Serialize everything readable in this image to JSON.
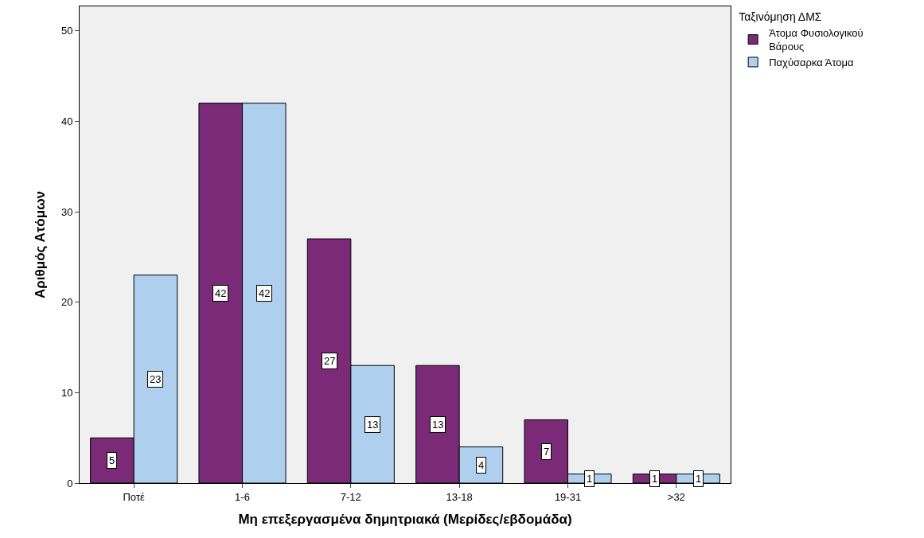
{
  "chart_data": {
    "type": "bar",
    "xlabel": "Μη επεξεργασμένα δημητριακά (Μερίδες/εβδομάδα)",
    "ylabel": "Αριθμός Ατόμων",
    "legend_title": "Ταξινόμηση ΔΜΣ",
    "categories": [
      "Ποτέ",
      "1-6",
      "7-12",
      "13-18",
      "19-31",
      ">32"
    ],
    "series": [
      {
        "name": "Άτομα Φυσιολογικού Βάρους",
        "color": "#7b2a78",
        "values": [
          5,
          42,
          27,
          13,
          7,
          1
        ]
      },
      {
        "name": "Παχύσαρκα Άτομα",
        "color": "#aed0ee",
        "values": [
          23,
          42,
          13,
          4,
          1,
          1
        ]
      }
    ],
    "ylim": [
      0,
      52.7
    ],
    "yticks": [
      0,
      10,
      20,
      30,
      40,
      50
    ],
    "data_labels": true,
    "legend": "top right",
    "grid": false
  }
}
